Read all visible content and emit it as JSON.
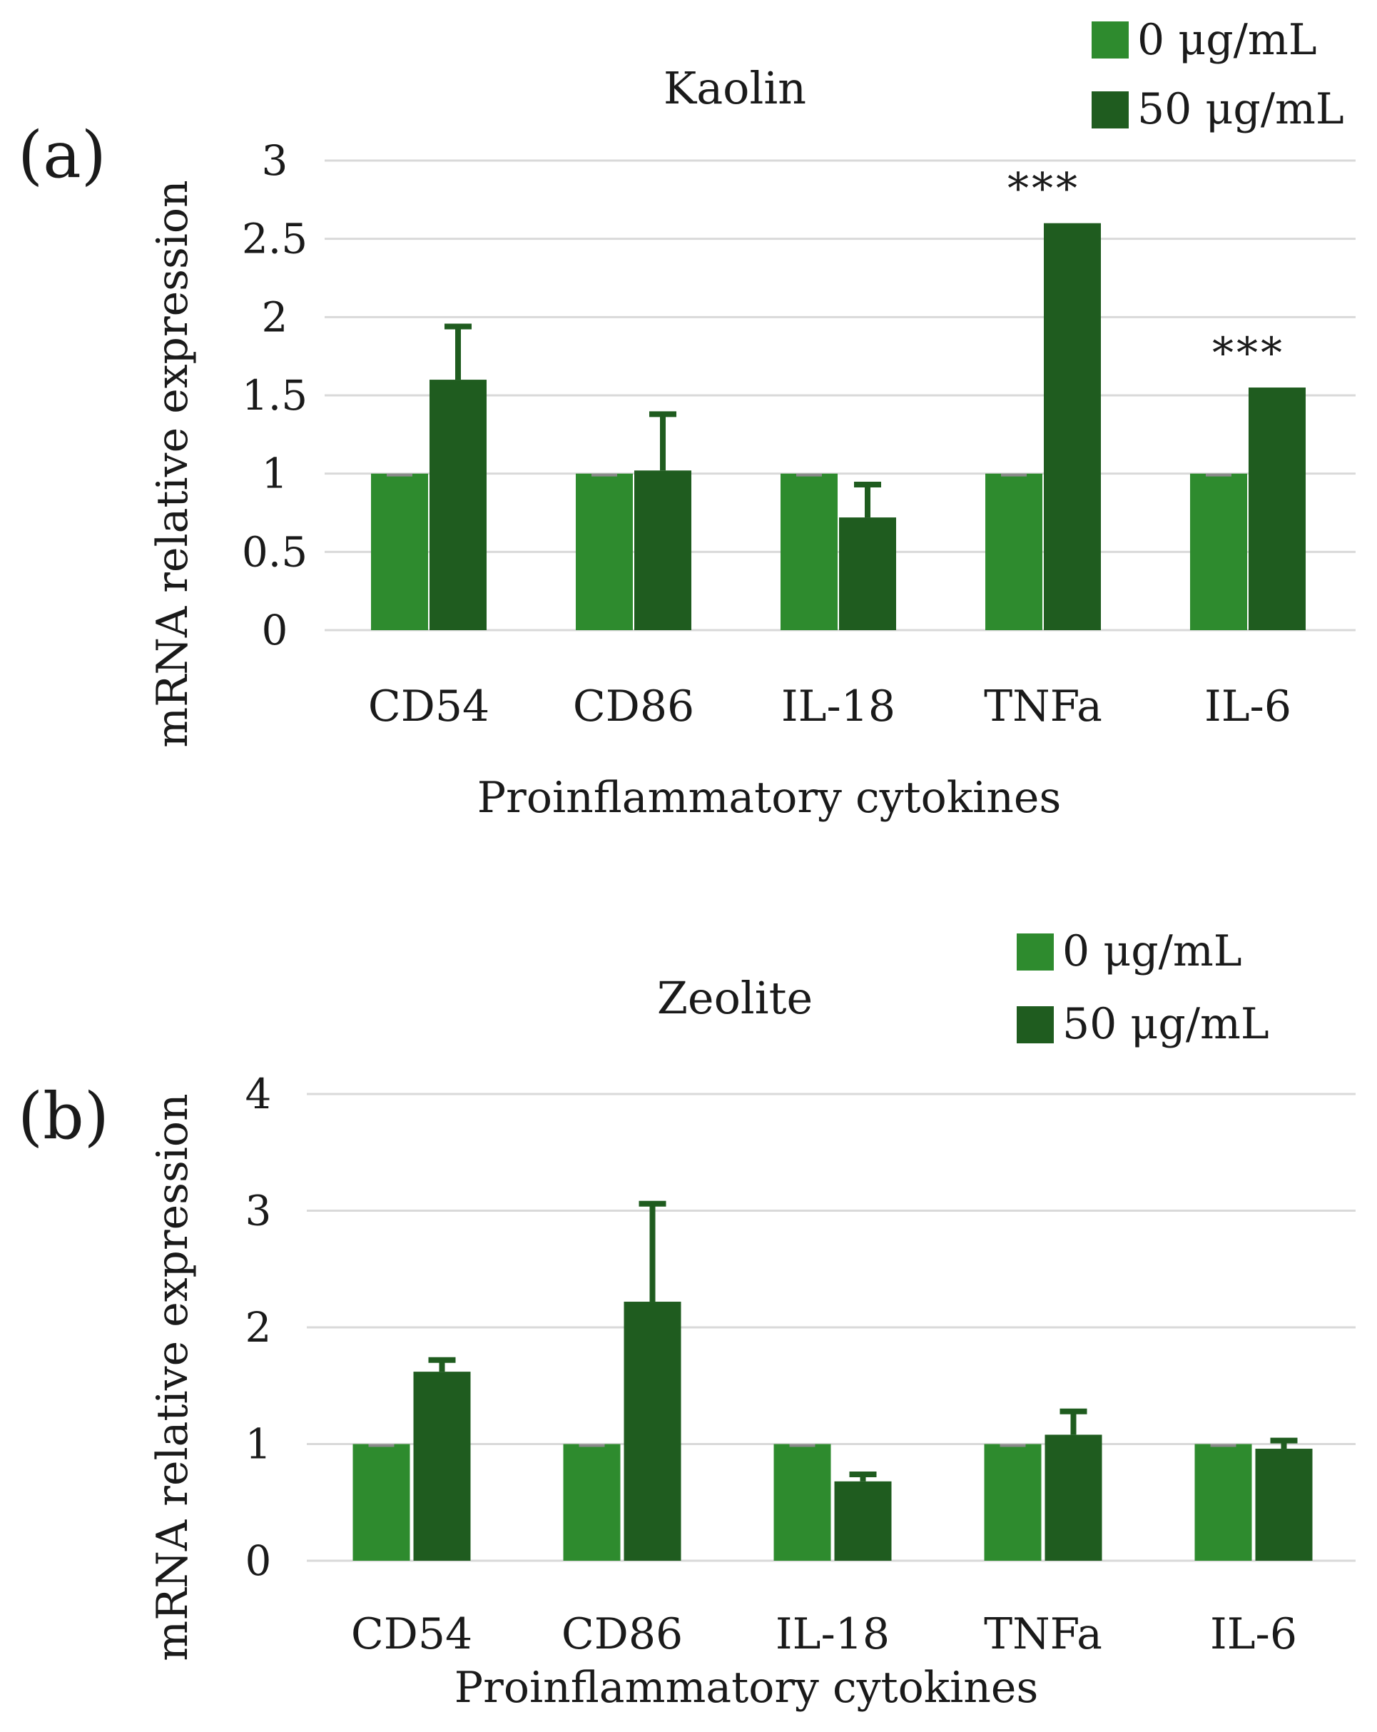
{
  "chart_data": [
    {
      "type": "bar",
      "panel_label": "(a)",
      "title": "Kaolin",
      "xlabel": "Proinflammatory cytokines",
      "ylabel": "mRNA relative expression",
      "ylim": [
        0,
        3
      ],
      "yticks": [
        0,
        0.5,
        1,
        1.5,
        2,
        2.5,
        3
      ],
      "ytick_labels": [
        "0",
        "0.5",
        "1",
        "1.5",
        "2",
        "2.5",
        "3"
      ],
      "grid": true,
      "legend_position": "top-right",
      "categories": [
        "CD54",
        "CD86",
        "IL-18",
        "TNFa",
        "IL-6"
      ],
      "series": [
        {
          "name": "0 μg/mL",
          "values": [
            1,
            1,
            1,
            1,
            1
          ],
          "errors": [
            0,
            0,
            0,
            0,
            0
          ]
        },
        {
          "name": "50 μg/mL",
          "values": [
            1.6,
            1.02,
            0.72,
            2.6,
            1.55
          ],
          "errors": [
            0.34,
            0.36,
            0.21,
            0,
            0
          ]
        }
      ],
      "annotations": [
        {
          "category": "TNFa",
          "text": "***"
        },
        {
          "category": "IL-6",
          "text": "***"
        }
      ]
    },
    {
      "type": "bar",
      "panel_label": "(b)",
      "title": "Zeolite",
      "xlabel": "Proinflammatory cytokines",
      "ylabel": "mRNA relative expression",
      "ylim": [
        0,
        4
      ],
      "yticks": [
        0,
        1,
        2,
        3,
        4
      ],
      "ytick_labels": [
        "0",
        "1",
        "2",
        "3",
        "4"
      ],
      "grid": true,
      "legend_position": "top-right",
      "categories": [
        "CD54",
        "CD86",
        "IL-18",
        "TNFa",
        "IL-6"
      ],
      "series": [
        {
          "name": "0 μg/mL",
          "values": [
            1,
            1,
            1,
            1,
            1
          ],
          "errors": [
            0,
            0,
            0,
            0,
            0
          ]
        },
        {
          "name": "50 μg/mL",
          "values": [
            1.62,
            2.22,
            0.68,
            1.08,
            0.96
          ],
          "errors": [
            0.1,
            0.84,
            0.06,
            0.2,
            0.07
          ]
        }
      ],
      "annotations": []
    }
  ],
  "colors": {
    "series0": "#2e8b2e",
    "series1": "#1f5c1f",
    "grid": "#d9d9d9",
    "error": "#1f5c1f",
    "series0_edge": "#8a8a8a"
  }
}
